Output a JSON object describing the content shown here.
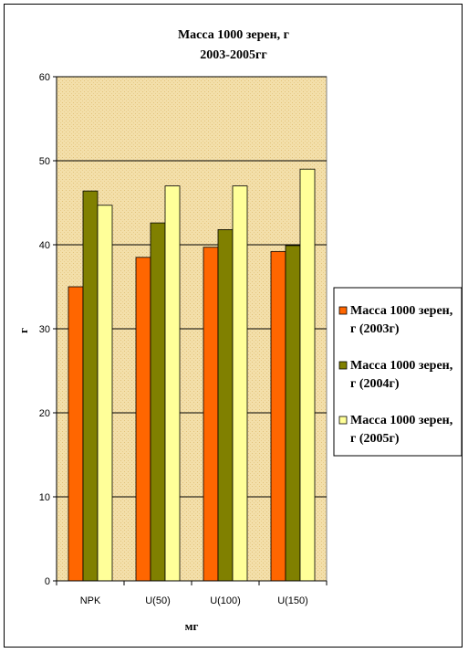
{
  "chart_data": {
    "type": "bar",
    "title": "Масса 1000 зерен, г",
    "subtitle": "2003-2005гг",
    "xlabel": "мг",
    "ylabel": "г",
    "categories": [
      "NPK",
      "U(50)",
      "U(100)",
      "U(150)"
    ],
    "ylim": [
      0,
      60
    ],
    "yticks": [
      0,
      10,
      20,
      30,
      40,
      50,
      60
    ],
    "grid": true,
    "legend_position": "right",
    "series": [
      {
        "name": "Масса 1000 зерен, г (2003г)",
        "name_lines": [
          "Масса 1000 зерен,",
          "г (2003г)"
        ],
        "color": "#ff6600",
        "values": [
          35,
          38.5,
          39.7,
          39.2
        ]
      },
      {
        "name": "Масса 1000 зерен, г (2004г)",
        "name_lines": [
          "Масса 1000 зерен,",
          "г (2004г)"
        ],
        "color": "#808000",
        "values": [
          46.4,
          42.6,
          41.8,
          39.9
        ]
      },
      {
        "name": "Масса 1000 зерен, г (2005г)",
        "name_lines": [
          "Масса 1000 зерен,",
          "г (2005г)"
        ],
        "color": "#ffff99",
        "values": [
          44.7,
          47,
          47,
          49
        ]
      }
    ],
    "plot_background": "#f0d9a0"
  }
}
